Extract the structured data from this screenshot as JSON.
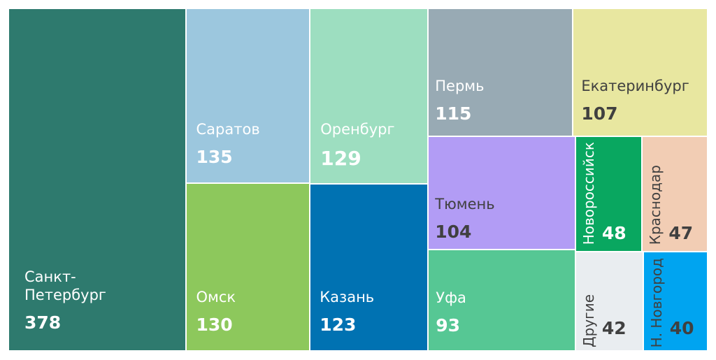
{
  "chart_data": {
    "type": "treemap",
    "items": [
      {
        "label": "Санкт-Петербург",
        "value": 378,
        "color": "#2e7a6e",
        "text_color": "#ffffff"
      },
      {
        "label": "Саратов",
        "value": 135,
        "color": "#9cc7de",
        "text_color": "#ffffff"
      },
      {
        "label": "Омск",
        "value": 130,
        "color": "#8dc85c",
        "text_color": "#ffffff"
      },
      {
        "label": "Оренбург",
        "value": 129,
        "color": "#9ddec0",
        "text_color": "#ffffff"
      },
      {
        "label": "Казань",
        "value": 123,
        "color": "#0072b2",
        "text_color": "#ffffff"
      },
      {
        "label": "Пермь",
        "value": 115,
        "color": "#98aab4",
        "text_color": "#ffffff"
      },
      {
        "label": "Екатеринбург",
        "value": 107,
        "color": "#e8e7a0",
        "text_color": "#404040"
      },
      {
        "label": "Тюмень",
        "value": 104,
        "color": "#b29cf5",
        "text_color": "#404040"
      },
      {
        "label": "Уфа",
        "value": 93,
        "color": "#56c794",
        "text_color": "#ffffff"
      },
      {
        "label": "Новороссийск",
        "value": 48,
        "color": "#09a760",
        "text_color": "#ffffff"
      },
      {
        "label": "Краснодар",
        "value": 47,
        "color": "#f2cdb4",
        "text_color": "#404040"
      },
      {
        "label": "Другие",
        "value": 42,
        "color": "#e9edf0",
        "text_color": "#404040"
      },
      {
        "label": "Н. Новгород",
        "value": 40,
        "color": "#00a4f0",
        "text_color": "#404040"
      }
    ]
  }
}
